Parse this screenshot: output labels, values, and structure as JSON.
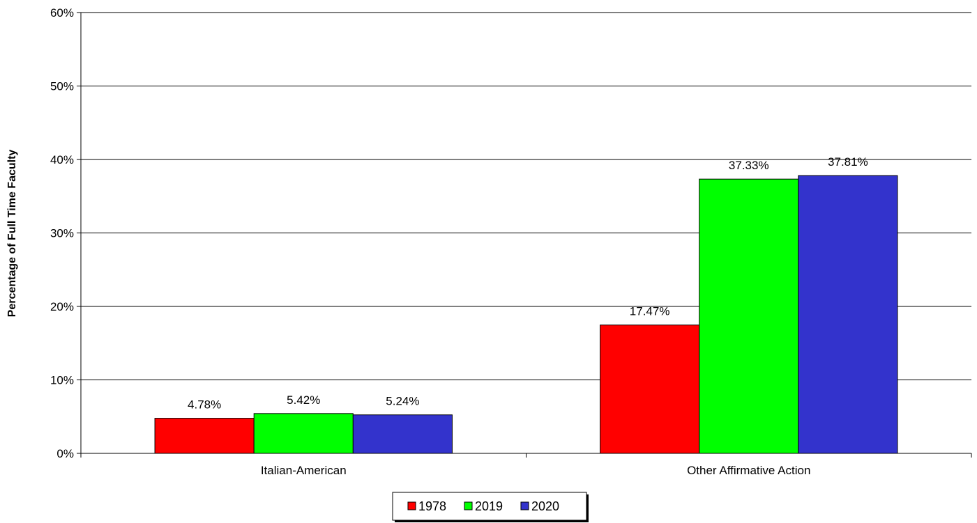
{
  "chart_data": {
    "type": "bar",
    "title": "",
    "xlabel": "",
    "ylabel": "Percentage of Full Time Faculty",
    "categories": [
      "Italian-American",
      "Other Affirmative Action"
    ],
    "series": [
      {
        "name": "1978",
        "values": [
          4.78,
          17.47
        ],
        "labels": [
          "4.78%",
          "17.47%"
        ],
        "color": "#ff0000"
      },
      {
        "name": "2019",
        "values": [
          5.42,
          37.33
        ],
        "labels": [
          "5.42%",
          "37.33%"
        ],
        "color": "#00ff00"
      },
      {
        "name": "2020",
        "values": [
          5.24,
          37.81
        ],
        "labels": [
          "5.24%",
          "37.81%"
        ],
        "color": "#3333cc"
      }
    ],
    "ylim": [
      0,
      60
    ],
    "yticks": [
      0,
      10,
      20,
      30,
      40,
      50,
      60
    ],
    "ytick_labels": [
      "0%",
      "10%",
      "20%",
      "30%",
      "40%",
      "50%",
      "60%"
    ],
    "grid": true,
    "legend_position": "bottom-center"
  }
}
